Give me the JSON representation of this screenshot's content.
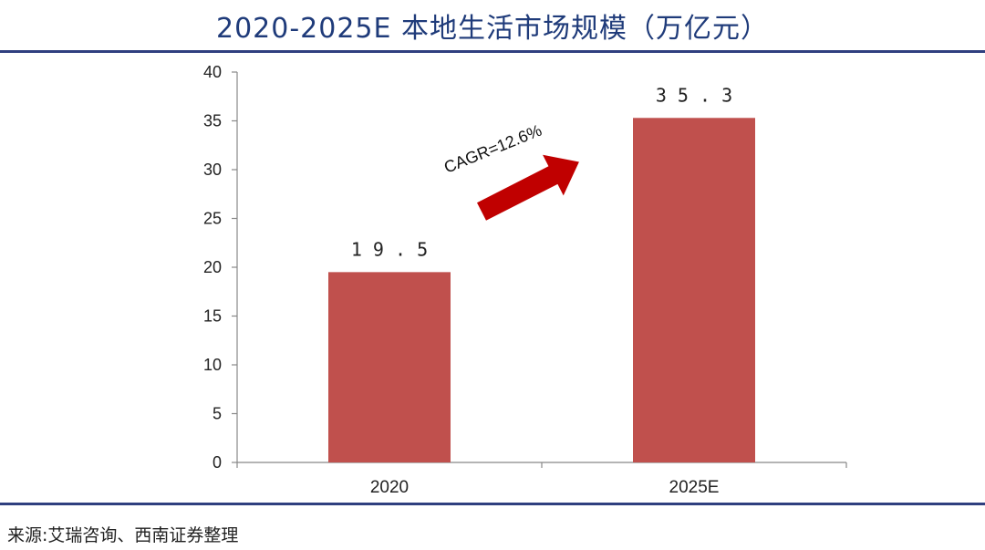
{
  "title": "2020-2025E 本地生活市场规模（万亿元）",
  "source": "来源:艾瑞咨询、西南证券整理",
  "colors": {
    "bar": "#c0504d",
    "arrow": "#c00000",
    "rule": "#2f3f7f",
    "title": "#1f3b7a"
  },
  "chart_data": {
    "type": "bar",
    "title": "2020-2025E 本地生活市场规模（万亿元）",
    "categories": [
      "2020",
      "2025E"
    ],
    "values": [
      19.5,
      35.3
    ],
    "data_labels": [
      "19.5",
      "35.3"
    ],
    "ylim": [
      0,
      40
    ],
    "yticks": [
      0,
      5,
      10,
      15,
      20,
      25,
      30,
      35,
      40
    ],
    "xlabel": "",
    "ylabel": "",
    "grid": false,
    "annotation": "CAGR=12.6%"
  }
}
